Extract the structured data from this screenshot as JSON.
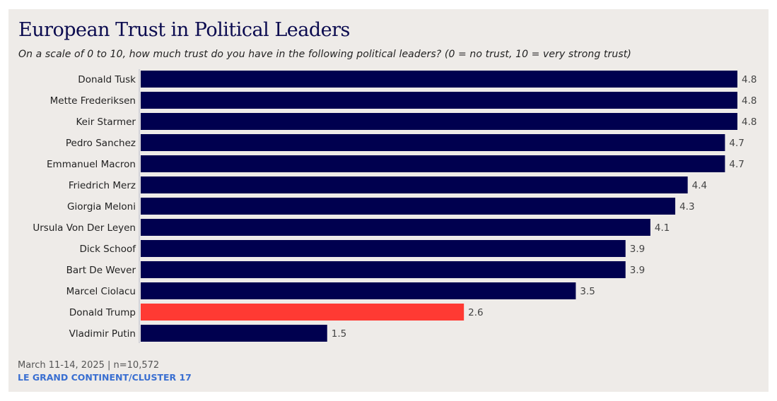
{
  "chart_data": {
    "type": "bar",
    "orientation": "horizontal",
    "title": "European Trust in Political Leaders",
    "subtitle": "On a scale of 0 to 10, how much trust do you have in the following political leaders? (0 = no trust, 10 = very strong trust)",
    "categories": [
      "Donald Tusk",
      "Mette Frederiksen",
      "Keir Starmer",
      "Pedro Sanchez",
      "Emmanuel Macron",
      "Friedrich Merz",
      "Giorgia Meloni",
      "Ursula Von Der Leyen",
      "Dick Schoof",
      "Bart De Wever",
      "Marcel Ciolacu",
      "Donald Trump",
      "Vladimir Putin"
    ],
    "values": [
      4.8,
      4.8,
      4.8,
      4.7,
      4.7,
      4.4,
      4.3,
      4.1,
      3.9,
      3.9,
      3.5,
      2.6,
      1.5
    ],
    "value_labels": [
      "4.8",
      "4.8",
      "4.8",
      "4.7",
      "4.7",
      "4.4",
      "4.3",
      "4.1",
      "3.9",
      "3.9",
      "3.5",
      "2.6",
      "1.5"
    ],
    "highlight": "Donald Trump",
    "colors": {
      "default": "#00004f",
      "highlight": "#ff3a33"
    },
    "xlim": [
      0,
      4.8
    ],
    "grid": false,
    "xlabel": "",
    "ylabel": ""
  },
  "footer": {
    "date_sample": "March 11-14, 2025 | n=10,572",
    "source": "LE GRAND CONTINENT/CLUSTER 17"
  },
  "colors": {
    "background": "#eeebe8",
    "title": "#0b0b4f",
    "source": "#3a6fd1"
  }
}
